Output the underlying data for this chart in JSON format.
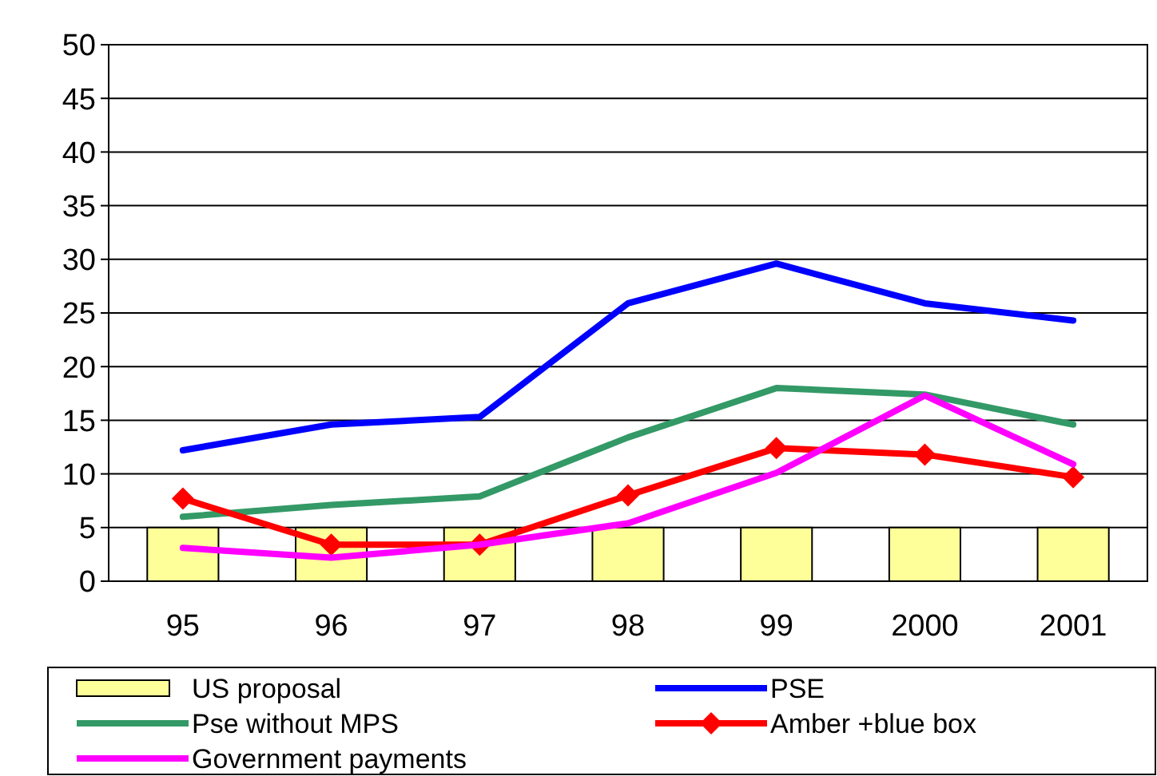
{
  "chart_data": {
    "type": "line",
    "categories": [
      "95",
      "96",
      "97",
      "98",
      "99",
      "2000",
      "2001"
    ],
    "ylim": [
      0,
      50
    ],
    "yticks": [
      0,
      5,
      10,
      15,
      20,
      25,
      30,
      35,
      40,
      45,
      50
    ],
    "grid": "y",
    "legend": "bottom",
    "series": [
      {
        "name": "US proposal",
        "type": "bar",
        "color": "#ffff99",
        "values": [
          5,
          5,
          5,
          5,
          5,
          5,
          5
        ]
      },
      {
        "name": "PSE",
        "color": "#0000ff",
        "values": [
          12.2,
          14.6,
          15.3,
          25.9,
          29.6,
          25.9,
          24.3
        ]
      },
      {
        "name": "Pse without MPS",
        "color": "#339966",
        "values": [
          6.0,
          7.1,
          7.9,
          13.4,
          18.0,
          17.4,
          14.6
        ]
      },
      {
        "name": "Amber +blue box",
        "color": "#ff0000",
        "marker": "diamond",
        "values": [
          7.7,
          3.4,
          3.4,
          8.0,
          12.4,
          11.8,
          9.7
        ]
      },
      {
        "name": "Government payments",
        "color": "#ff00ff",
        "values": [
          3.1,
          2.2,
          3.4,
          5.4,
          10.1,
          17.3,
          10.9
        ]
      }
    ]
  }
}
